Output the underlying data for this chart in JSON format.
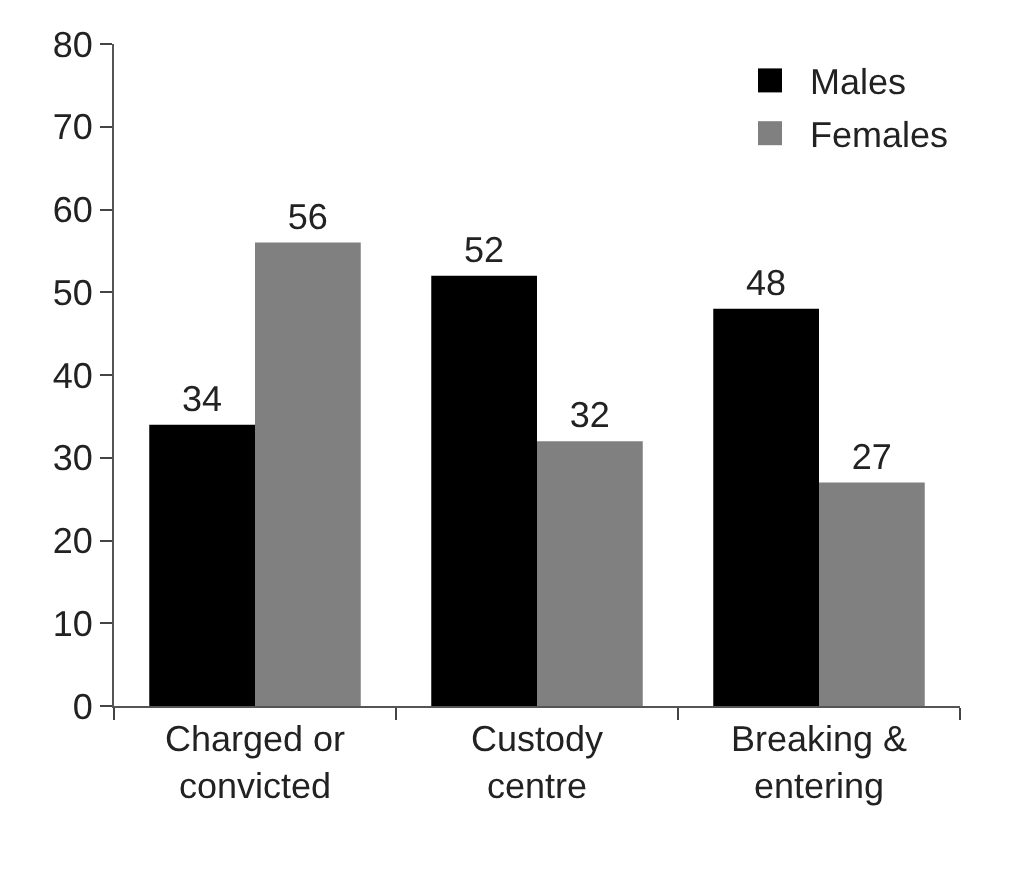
{
  "chart_data": {
    "type": "bar",
    "categories": [
      "Charged or\nconvicted",
      "Custody\ncentre",
      "Breaking &\nentering"
    ],
    "series": [
      {
        "name": "Males",
        "color": "#000000",
        "values": [
          34,
          52,
          48
        ]
      },
      {
        "name": "Females",
        "color": "#808080",
        "values": [
          56,
          32,
          27
        ]
      }
    ],
    "ylim": [
      0,
      80
    ],
    "yticks": [
      0,
      10,
      20,
      30,
      40,
      50,
      60,
      70,
      80
    ],
    "legend": "top right",
    "data_labels": true
  }
}
